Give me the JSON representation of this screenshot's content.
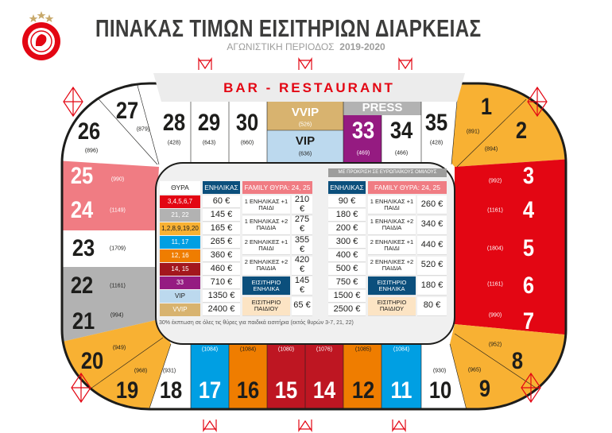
{
  "logo": {
    "text": "ΟΛΥΜΠΙΑΚΟΣ ΣΥΝΔΕΣΜΟΣ ΦΙΛΑΘΛΩΝ ΠΕΙΡΑΙΩΣ",
    "year": "1925",
    "stars": 3,
    "color": "#e30613"
  },
  "title": "ΠΙΝΑΚΑΣ ΤΙΜΩΝ ΕΙΣΙΤΗΡΙΩΝ ΔΙΑΡΚΕΙΑΣ",
  "subtitle": {
    "label": "ΑΓΩΝΙΣΤΙΚΗ ΠΕΡΙΟΔΟΣ",
    "season": "2019-2020"
  },
  "bar_restaurant": "BAR - RESTAURANT",
  "sections": {
    "s26": {
      "num": "26",
      "cap": "(896)"
    },
    "s27": {
      "num": "27",
      "cap": "(879)"
    },
    "s28": {
      "num": "28",
      "cap": "(428)"
    },
    "s29": {
      "num": "29",
      "cap": "(643)"
    },
    "s30": {
      "num": "30",
      "cap": "(660)"
    },
    "vvip": {
      "num": "VVIP",
      "cap": "(526)"
    },
    "vip": {
      "num": "VIP",
      "cap": "(636)"
    },
    "press": {
      "num": "PRESS"
    },
    "s33": {
      "num": "33",
      "cap": "(469)"
    },
    "s34": {
      "num": "34",
      "cap": "(466)"
    },
    "s35": {
      "num": "35",
      "cap": "(428)"
    },
    "s1": {
      "num": "1",
      "cap": "(891)"
    },
    "s2": {
      "num": "2",
      "cap": "(894)"
    },
    "s25": {
      "num": "25",
      "cap": "(990)"
    },
    "s24": {
      "num": "24",
      "cap": "(1149)"
    },
    "s23": {
      "num": "23",
      "cap": "(1709)"
    },
    "s22": {
      "num": "22",
      "cap": "(1161)"
    },
    "s21": {
      "num": "21",
      "cap": "(994)"
    },
    "s3": {
      "num": "3",
      "cap": "(992)"
    },
    "s4": {
      "num": "4",
      "cap": "(1161)"
    },
    "s5": {
      "num": "5",
      "cap": "(1804)"
    },
    "s6": {
      "num": "6",
      "cap": "(1161)"
    },
    "s7": {
      "num": "7",
      "cap": "(990)"
    },
    "s20": {
      "num": "20",
      "cap": "(949)"
    },
    "s19": {
      "num": "19",
      "cap": "(968)"
    },
    "s18": {
      "num": "18",
      "cap": "(931)"
    },
    "s17": {
      "num": "17",
      "cap": "(1084)"
    },
    "s16": {
      "num": "16",
      "cap": "(1084)"
    },
    "s15": {
      "num": "15",
      "cap": "(1080)"
    },
    "s14": {
      "num": "14",
      "cap": "(1076)"
    },
    "s12": {
      "num": "12",
      "cap": "(1085)"
    },
    "s11": {
      "num": "11",
      "cap": "(1084)"
    },
    "s10": {
      "num": "10",
      "cap": "(930)"
    },
    "s9": {
      "num": "9",
      "cap": "(965)"
    },
    "s8": {
      "num": "8",
      "cap": "(952)"
    }
  },
  "prices": {
    "gate_header": "ΘΥΡΑ",
    "adult_header": "ΕΝΗΛΙΚΑΣ",
    "family_header": "FAMILY ΘΥΡΑ: 24, 25",
    "europe_header": "ΜΕ ΠΡΟΚΡΙΣΗ ΣΕ ΕΥΡΩΠΑΪΚΟΥΣ ΟΜΙΛΟΥΣ",
    "gates": [
      {
        "label": "3,4,5,6,7",
        "color": "#e30613",
        "price": "60 €",
        "price_europe": "90 €"
      },
      {
        "label": "21, 22",
        "color": "#b2b2b2",
        "price": "145 €",
        "price_europe": "180 €"
      },
      {
        "label": "1,2,8,9,19,20",
        "color": "#f8b133",
        "price": "165 €",
        "price_europe": "200 €"
      },
      {
        "label": "11, 17",
        "color": "#009fe3",
        "price": "265 €",
        "price_europe": "300 €"
      },
      {
        "label": "12, 16",
        "color": "#ef7d00",
        "price": "360 €",
        "price_europe": "400 €"
      },
      {
        "label": "14, 15",
        "color": "#a3171d",
        "price": "460 €",
        "price_europe": "500 €"
      },
      {
        "label": "33",
        "color": "#951b81",
        "price": "710 €",
        "price_europe": "750 €"
      },
      {
        "label": "VIP",
        "color": "#bcd9ee",
        "price": "1350 €",
        "price_europe": "1500 €"
      },
      {
        "label": "VVIP",
        "color": "#d8b36f",
        "price": "2400 €",
        "price_europe": "2500 €"
      }
    ],
    "family": [
      {
        "label": "1 ΕΝΗΛΙΚΑΣ +1 ΠΑΙΔΙ",
        "price": "210 €",
        "price_europe": "260 €"
      },
      {
        "label": "1 ΕΝΗΛΙΚΑΣ +2 ΠΑΙΔΙΑ",
        "price": "275 €",
        "price_europe": "340 €"
      },
      {
        "label": "2 ΕΝΗΛΙΚΕΣ +1 ΠΑΙΔΙ",
        "price": "355 €",
        "price_europe": "440 €"
      },
      {
        "label": "2 ΕΝΗΛΙΚΕΣ +2 ΠΑΙΔΙΑ",
        "price": "420 €",
        "price_europe": "520 €"
      },
      {
        "label": "ΕΙΣΙΤΗΡΙΟ ΕΝΗΛΙΚΑ",
        "price": "145 €",
        "price_europe": "180 €",
        "color": "#0b4f7c"
      },
      {
        "label": "ΕΙΣΙΤΗΡΙΟ ΠΑΙΔΙΟΥ",
        "price": "65 €",
        "price_europe": "80 €",
        "color": "#fce4c4"
      }
    ],
    "note": "30% έκπτωση σε όλες τις θύρες για παιδικά εισιτήρια (εκτός θυρών 3-7, 21, 22)"
  },
  "colors": {
    "adult_header": "#0b4f7c",
    "family_header": "#f07c83",
    "europe_header": "#9d9d9c",
    "truss": "#e30613"
  }
}
